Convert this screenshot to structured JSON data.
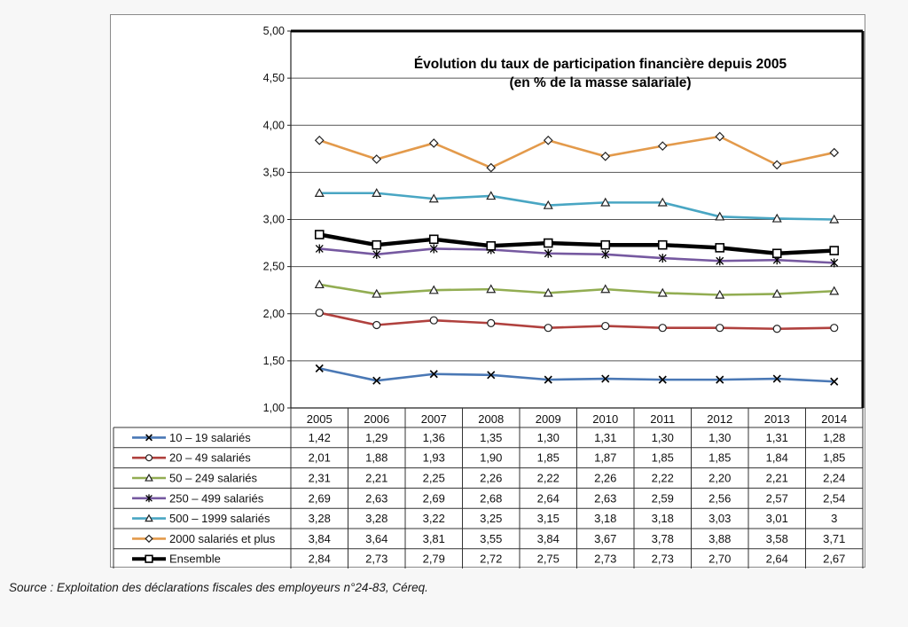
{
  "chart_data": {
    "type": "line",
    "title": "Évolution du taux de participation financière depuis 2005",
    "subtitle": "(en % de la masse salariale)",
    "categories": [
      "2005",
      "2006",
      "2007",
      "2008",
      "2009",
      "2010",
      "2011",
      "2012",
      "2013",
      "2014"
    ],
    "ylim": [
      1.0,
      5.0
    ],
    "yticks": [
      "1,00",
      "1,50",
      "2,00",
      "2,50",
      "3,00",
      "3,50",
      "4,00",
      "4,50",
      "5,00"
    ],
    "grid": true,
    "legend": "table-below",
    "series": [
      {
        "name": "10 – 19 salariés",
        "color": "#4a78b5",
        "marker": "x",
        "values": [
          1.42,
          1.29,
          1.36,
          1.35,
          1.3,
          1.31,
          1.3,
          1.3,
          1.31,
          1.28
        ],
        "labels": [
          "1,42",
          "1,29",
          "1,36",
          "1,35",
          "1,30",
          "1,31",
          "1,30",
          "1,30",
          "1,31",
          "1,28"
        ]
      },
      {
        "name": "20 – 49 salariés",
        "color": "#b0413e",
        "marker": "circle",
        "values": [
          2.01,
          1.88,
          1.93,
          1.9,
          1.85,
          1.87,
          1.85,
          1.85,
          1.84,
          1.85
        ],
        "labels": [
          "2,01",
          "1,88",
          "1,93",
          "1,90",
          "1,85",
          "1,87",
          "1,85",
          "1,85",
          "1,84",
          "1,85"
        ]
      },
      {
        "name": "50 – 249 salariés",
        "color": "#92ad52",
        "marker": "triangle",
        "values": [
          2.31,
          2.21,
          2.25,
          2.26,
          2.22,
          2.26,
          2.22,
          2.2,
          2.21,
          2.24
        ],
        "labels": [
          "2,31",
          "2,21",
          "2,25",
          "2,26",
          "2,22",
          "2,26",
          "2,22",
          "2,20",
          "2,21",
          "2,24"
        ]
      },
      {
        "name": "250 – 499 salariés",
        "color": "#7659a0",
        "marker": "asterisk",
        "values": [
          2.69,
          2.63,
          2.69,
          2.68,
          2.64,
          2.63,
          2.59,
          2.56,
          2.57,
          2.54
        ],
        "labels": [
          "2,69",
          "2,63",
          "2,69",
          "2,68",
          "2,64",
          "2,63",
          "2,59",
          "2,56",
          "2,57",
          "2,54"
        ]
      },
      {
        "name": "500 – 1999 salariés",
        "color": "#49a6c3",
        "marker": "triangle",
        "values": [
          3.28,
          3.28,
          3.22,
          3.25,
          3.15,
          3.18,
          3.18,
          3.03,
          3.01,
          3.0
        ],
        "labels": [
          "3,28",
          "3,28",
          "3,22",
          "3,25",
          "3,15",
          "3,18",
          "3,18",
          "3,03",
          "3,01",
          "3"
        ]
      },
      {
        "name": "2000 salariés et plus",
        "color": "#e39a4b",
        "marker": "diamond",
        "values": [
          3.84,
          3.64,
          3.81,
          3.55,
          3.84,
          3.67,
          3.78,
          3.88,
          3.58,
          3.71
        ],
        "labels": [
          "3,84",
          "3,64",
          "3,81",
          "3,55",
          "3,84",
          "3,67",
          "3,78",
          "3,88",
          "3,58",
          "3,71"
        ]
      },
      {
        "name": "Ensemble",
        "color": "#000000",
        "marker": "square",
        "values": [
          2.84,
          2.73,
          2.79,
          2.72,
          2.75,
          2.73,
          2.73,
          2.7,
          2.64,
          2.67
        ],
        "labels": [
          "2,84",
          "2,73",
          "2,79",
          "2,72",
          "2,75",
          "2,73",
          "2,73",
          "2,70",
          "2,64",
          "2,67"
        ]
      }
    ]
  },
  "source_note": "Source : Exploitation des déclarations fiscales des employeurs n°24-83, Céreq."
}
